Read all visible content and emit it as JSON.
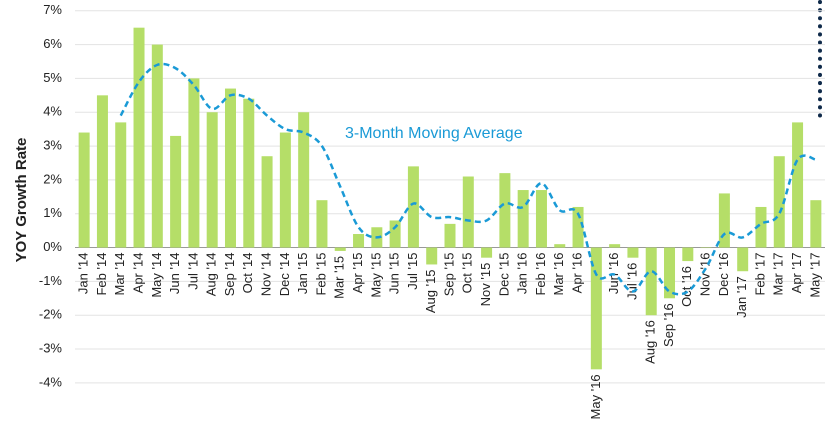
{
  "chart_data": {
    "type": "bar",
    "y_label": "YOY Growth Rate",
    "annotation": "3-Month Moving Average",
    "categories": [
      "Jan '14",
      "Feb '14",
      "Mar '14",
      "Apr '14",
      "May '14",
      "Jun '14",
      "Jul '14",
      "Aug '14",
      "Sep '14",
      "Oct '14",
      "Nov '14",
      "Dec '14",
      "Jan '15",
      "Feb '15",
      "Mar '15",
      "Apr '15",
      "May '15",
      "Jun '15",
      "Jul '15",
      "Aug '15",
      "Sep '15",
      "Oct '15",
      "Nov '15",
      "Dec '15",
      "Jan '16",
      "Feb '16",
      "Mar '16",
      "Apr '16",
      "May '16",
      "Jun '16",
      "Jul '16",
      "Aug '16",
      "Sep '16",
      "Oct '16",
      "Nov '16",
      "Dec '16",
      "Jan '17",
      "Feb '17",
      "Mar '17",
      "Apr '17",
      "May '17"
    ],
    "series": [
      {
        "type": "bar",
        "color": "#b5de68",
        "values": [
          3.4,
          4.5,
          3.7,
          6.5,
          6.0,
          3.3,
          5.0,
          4.0,
          4.7,
          4.4,
          2.7,
          3.4,
          4.0,
          1.4,
          -0.1,
          0.4,
          0.6,
          0.8,
          2.4,
          -0.5,
          0.7,
          2.1,
          -0.3,
          2.2,
          1.7,
          1.7,
          0.1,
          1.2,
          -3.6,
          0.1,
          -0.3,
          -2.0,
          -1.5,
          -0.4,
          0,
          1.6,
          -0.7,
          1.2,
          2.7,
          3.7,
          1.4
        ]
      },
      {
        "type": "line",
        "color": "#1a9ad6",
        "name": "3-Month Moving Average",
        "values": [
          null,
          null,
          3.9,
          4.9,
          5.4,
          5.3,
          4.8,
          4.1,
          4.5,
          4.4,
          3.9,
          3.5,
          3.4,
          3.0,
          1.8,
          0.6,
          0.3,
          0.6,
          1.3,
          0.9,
          0.9,
          0.8,
          0.8,
          1.3,
          1.2,
          1.9,
          1.1,
          1.0,
          -0.8,
          -0.8,
          -1.3,
          -0.7,
          -1.3,
          -1.3,
          -0.6,
          0.4,
          0.3,
          0.7,
          1.0,
          2.6,
          2.6
        ]
      }
    ],
    "ylim": [
      -4.3,
      7.2
    ],
    "yticks": [
      {
        "value": -4,
        "label": "-4%"
      },
      {
        "value": -3,
        "label": "-3%"
      },
      {
        "value": -2,
        "label": "-2%"
      },
      {
        "value": -1,
        "label": "-1%"
      },
      {
        "value": 0,
        "label": "0%"
      },
      {
        "value": 1,
        "label": "1%"
      },
      {
        "value": 2,
        "label": "2%"
      },
      {
        "value": 3,
        "label": "3%"
      },
      {
        "value": 4,
        "label": "4%"
      },
      {
        "value": 5,
        "label": "5%"
      },
      {
        "value": 6,
        "label": "6%"
      },
      {
        "value": 7,
        "label": "7%"
      }
    ],
    "grid": true
  }
}
